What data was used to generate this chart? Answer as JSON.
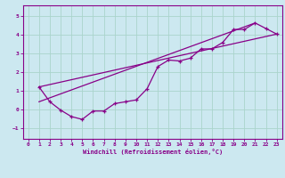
{
  "xlabel": "Windchill (Refroidissement éolien,°C)",
  "bg_color": "#cce8f0",
  "line_color": "#880088",
  "grid_color": "#aad4cc",
  "xlim": [
    -0.5,
    23.5
  ],
  "ylim": [
    -1.6,
    5.6
  ],
  "xticks": [
    0,
    1,
    2,
    3,
    4,
    5,
    6,
    7,
    8,
    9,
    10,
    11,
    12,
    13,
    14,
    15,
    16,
    17,
    18,
    19,
    20,
    21,
    22,
    23
  ],
  "yticks": [
    -1,
    0,
    1,
    2,
    3,
    4,
    5
  ],
  "line1_x": [
    1,
    2,
    3,
    4,
    5,
    6,
    7,
    8,
    9,
    10,
    11,
    12,
    13,
    14,
    15,
    16,
    17,
    18,
    19,
    20,
    21,
    22,
    23
  ],
  "line1_y": [
    1.2,
    0.4,
    -0.05,
    -0.4,
    -0.55,
    -0.1,
    -0.1,
    0.3,
    0.4,
    0.5,
    1.1,
    2.3,
    2.65,
    2.6,
    2.75,
    3.25,
    3.25,
    3.6,
    4.3,
    4.3,
    4.65,
    4.35,
    4.05
  ],
  "line2_x": [
    1,
    23
  ],
  "line2_y": [
    1.2,
    4.05
  ],
  "line3_x": [
    1,
    21
  ],
  "line3_y": [
    0.4,
    4.65
  ]
}
